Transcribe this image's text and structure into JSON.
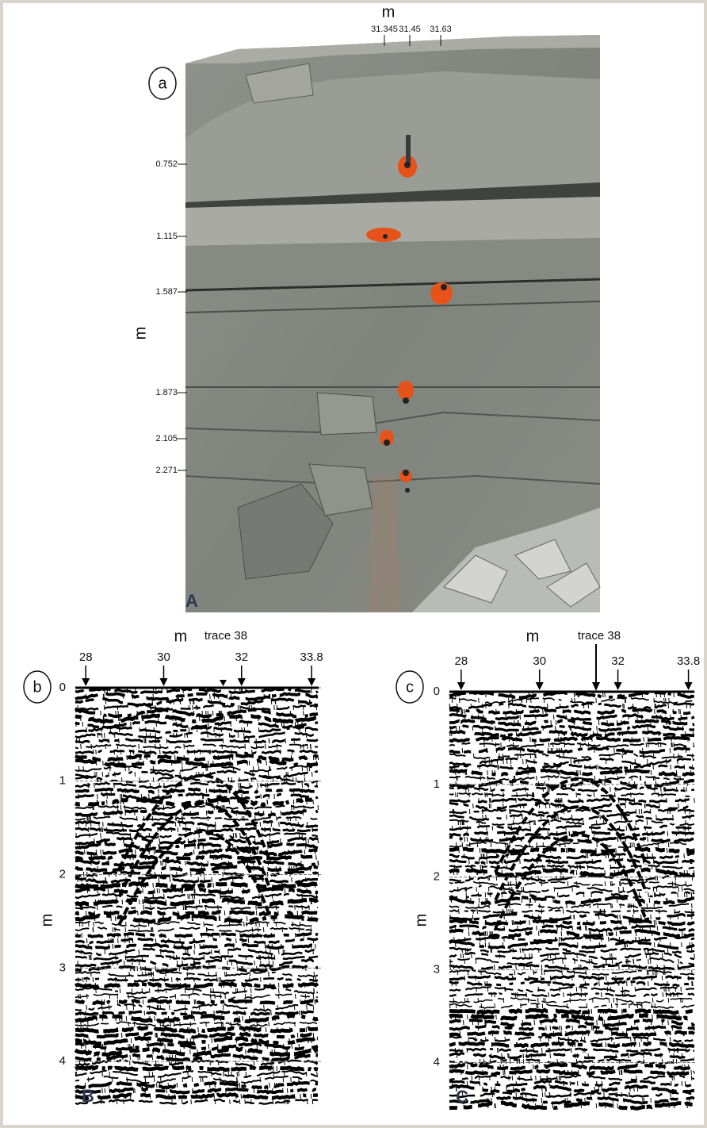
{
  "panel_a": {
    "label": "a",
    "corner_letter": "A",
    "top_axis_label": "m",
    "top_ticks": [
      31.345,
      31.45,
      31.63
    ],
    "left_axis_label": "m",
    "left_ticks": [
      0.752,
      1.115,
      1.587,
      1.873,
      2.105,
      2.271
    ]
  },
  "panel_b": {
    "label": "b",
    "corner_letter": "B",
    "x_axis_label": "m",
    "annotation": "trace 38",
    "xlim": [
      27.73,
      33.98
    ],
    "xticks": [
      28,
      30,
      32,
      33.8
    ],
    "y_axis_label": "m",
    "ylim": [
      0,
      4.5
    ],
    "yticks": [
      0,
      1,
      2,
      3,
      4
    ]
  },
  "panel_c": {
    "label": "c",
    "corner_letter": "C",
    "x_axis_label": "m",
    "annotation": "trace 38",
    "xlim": [
      27.7,
      33.95
    ],
    "xticks": [
      28,
      30,
      32,
      33.8
    ],
    "y_axis_label": "m",
    "ylim": [
      0,
      4.5
    ],
    "yticks": [
      0,
      1,
      2,
      3,
      4
    ]
  }
}
